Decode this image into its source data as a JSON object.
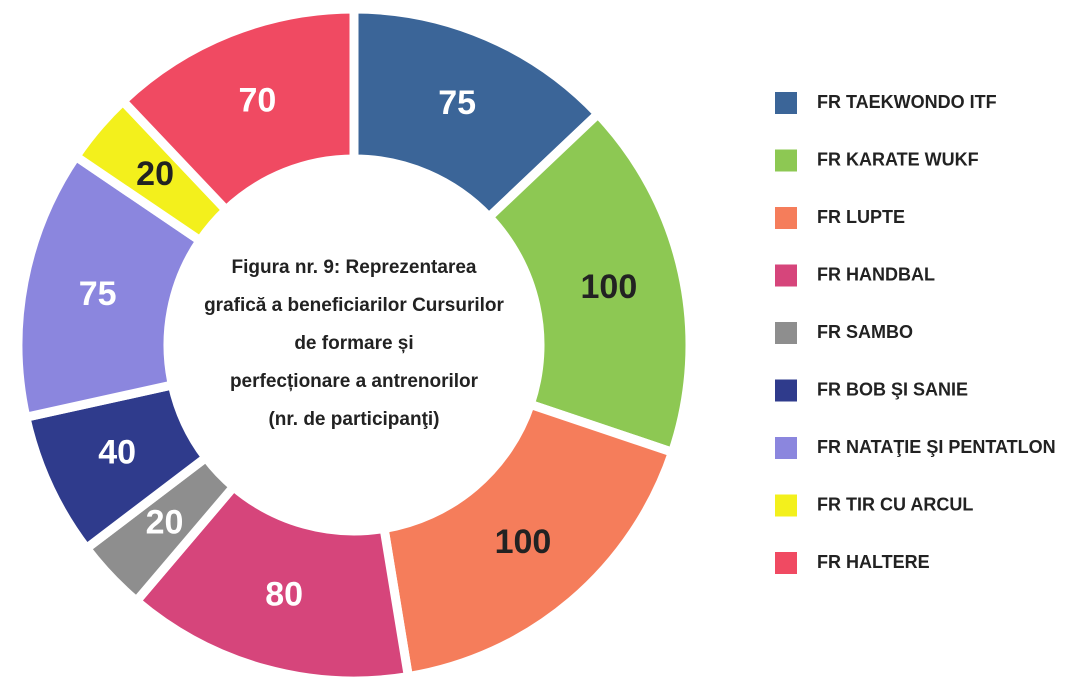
{
  "chart_data": {
    "type": "donut",
    "title": [
      "Figura nr. 9: Reprezentarea",
      "grafică a beneficiarilor Cursurilor",
      "de formare și",
      "perfecționare a antrenorilor",
      "(nr. de participanţi)"
    ],
    "categories": [
      "FR TAEKWONDO ITF",
      "FR KARATE WUKF",
      "FR LUPTE",
      "FR HANDBAL",
      "FR SAMBO",
      "FR BOB ŞI SANIE",
      "FR NATAŢIE ŞI PENTATLON",
      "FR TIR CU ARCUL",
      "FR HALTERE"
    ],
    "values": [
      75,
      100,
      100,
      80,
      20,
      40,
      75,
      20,
      70
    ],
    "colors": [
      "#3b6598",
      "#8dc853",
      "#f57d5b",
      "#d6457b",
      "#8e8e8e",
      "#2f3b8c",
      "#8b86de",
      "#f3f01c",
      "#f04a62"
    ],
    "label_colors": [
      "#ffffff",
      "#222222",
      "#222222",
      "#ffffff",
      "#ffffff",
      "#ffffff",
      "#ffffff",
      "#222222",
      "#ffffff"
    ],
    "legend": "right"
  }
}
